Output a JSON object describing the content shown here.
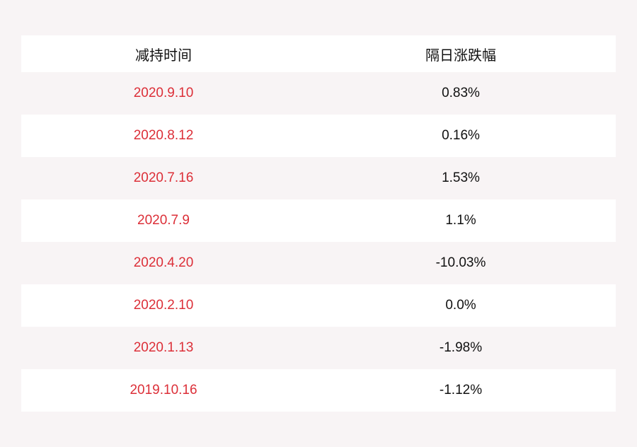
{
  "headers": [
    "减持时间",
    "隔日涨跌幅"
  ],
  "rows": [
    {
      "date": "2020.9.10",
      "change": "0.83%"
    },
    {
      "date": "2020.8.12",
      "change": "0.16%"
    },
    {
      "date": "2020.7.16",
      "change": "1.53%"
    },
    {
      "date": "2020.7.9",
      "change": "1.1%"
    },
    {
      "date": "2020.4.20",
      "change": "-10.03%"
    },
    {
      "date": "2020.2.10",
      "change": "0.0%"
    },
    {
      "date": "2020.1.13",
      "change": "-1.98%"
    },
    {
      "date": "2019.10.16",
      "change": "-1.12%"
    }
  ],
  "colors": {
    "date_text": "#dc2f38",
    "background": "#f8f4f5"
  }
}
